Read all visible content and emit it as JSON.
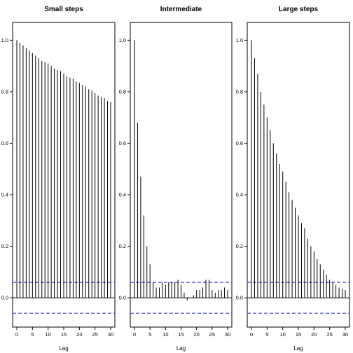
{
  "chart_data": [
    {
      "type": "bar",
      "title": "Small steps",
      "xlabel": "Lag",
      "ylabel": "",
      "xlim": [
        0,
        30
      ],
      "ylim": [
        -0.1,
        1.05
      ],
      "x_ticks": [
        0,
        5,
        10,
        15,
        20,
        25,
        30
      ],
      "y_ticks": [
        0.0,
        0.2,
        0.4,
        0.6,
        0.8,
        1.0
      ],
      "conf_bounds": [
        0.06,
        -0.06
      ],
      "x": [
        0,
        1,
        2,
        3,
        4,
        5,
        6,
        7,
        8,
        9,
        10,
        11,
        12,
        13,
        14,
        15,
        16,
        17,
        18,
        19,
        20,
        21,
        22,
        23,
        24,
        25,
        26,
        27,
        28,
        29,
        30
      ],
      "values": [
        1.0,
        0.99,
        0.98,
        0.97,
        0.96,
        0.95,
        0.94,
        0.93,
        0.92,
        0.915,
        0.91,
        0.9,
        0.89,
        0.885,
        0.88,
        0.87,
        0.86,
        0.855,
        0.85,
        0.84,
        0.835,
        0.825,
        0.82,
        0.81,
        0.805,
        0.795,
        0.785,
        0.78,
        0.775,
        0.765,
        0.76
      ]
    },
    {
      "type": "bar",
      "title": "Intermediate",
      "xlabel": "Lag",
      "ylabel": "",
      "xlim": [
        0,
        30
      ],
      "ylim": [
        -0.1,
        1.05
      ],
      "x_ticks": [
        0,
        5,
        10,
        15,
        20,
        25,
        30
      ],
      "y_ticks": [
        0.0,
        0.2,
        0.4,
        0.6,
        0.8,
        1.0
      ],
      "conf_bounds": [
        0.06,
        -0.06
      ],
      "x": [
        0,
        1,
        2,
        3,
        4,
        5,
        6,
        7,
        8,
        9,
        10,
        11,
        12,
        13,
        14,
        15,
        16,
        17,
        18,
        19,
        20,
        21,
        22,
        23,
        24,
        25,
        26,
        27,
        28,
        29,
        30
      ],
      "values": [
        1.0,
        0.68,
        0.47,
        0.32,
        0.2,
        0.13,
        0.06,
        0.04,
        0.04,
        0.06,
        0.05,
        0.06,
        0.06,
        0.06,
        0.07,
        0.05,
        0.02,
        -0.01,
        0.0,
        0.01,
        0.03,
        0.03,
        0.04,
        0.07,
        0.07,
        0.03,
        0.02,
        0.03,
        0.03,
        0.04,
        0.03
      ]
    },
    {
      "type": "bar",
      "title": "Large steps",
      "xlabel": "Lag",
      "ylabel": "",
      "xlim": [
        0,
        30
      ],
      "ylim": [
        -0.1,
        1.05
      ],
      "x_ticks": [
        0,
        5,
        10,
        15,
        20,
        25,
        30
      ],
      "y_ticks": [
        0.0,
        0.2,
        0.4,
        0.6,
        0.8,
        1.0
      ],
      "conf_bounds": [
        0.06,
        -0.06
      ],
      "x": [
        0,
        1,
        2,
        3,
        4,
        5,
        6,
        7,
        8,
        9,
        10,
        11,
        12,
        13,
        14,
        15,
        16,
        17,
        18,
        19,
        20,
        21,
        22,
        23,
        24,
        25,
        26,
        27,
        28,
        29,
        30
      ],
      "values": [
        1.0,
        0.93,
        0.87,
        0.8,
        0.75,
        0.7,
        0.65,
        0.6,
        0.56,
        0.52,
        0.49,
        0.45,
        0.41,
        0.38,
        0.35,
        0.32,
        0.29,
        0.27,
        0.23,
        0.2,
        0.18,
        0.15,
        0.13,
        0.11,
        0.09,
        0.07,
        0.06,
        0.05,
        0.04,
        0.035,
        0.03
      ]
    }
  ],
  "colors": {
    "stem": "#000000",
    "conf_line": "#5050d8",
    "frame": "#000000"
  }
}
